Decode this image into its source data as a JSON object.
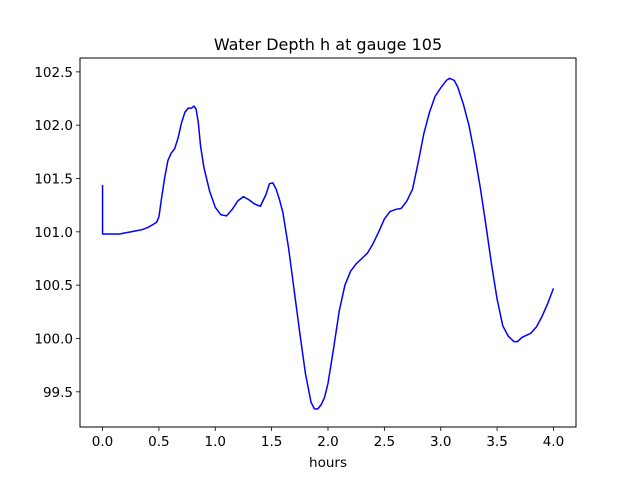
{
  "chart_data": {
    "type": "line",
    "title": "Water Depth h at gauge 105",
    "xlabel": "hours",
    "ylabel": "",
    "xlim": [
      -0.2,
      4.2
    ],
    "ylim": [
      99.17,
      102.63
    ],
    "x_ticks": [
      0.0,
      0.5,
      1.0,
      1.5,
      2.0,
      2.5,
      3.0,
      3.5,
      4.0
    ],
    "x_tick_labels": [
      "0.0",
      "0.5",
      "1.0",
      "1.5",
      "2.0",
      "2.5",
      "3.0",
      "3.5",
      "4.0"
    ],
    "y_ticks": [
      99.5,
      100.0,
      100.5,
      101.0,
      101.5,
      102.0,
      102.5
    ],
    "y_tick_labels": [
      "99.5",
      "100.0",
      "100.5",
      "101.0",
      "101.5",
      "102.0",
      "102.5"
    ],
    "grid": false,
    "legend": "none",
    "line_color": "#0000ff",
    "series": [
      {
        "x": [
          0.0,
          0.0,
          0.01,
          0.05,
          0.1,
          0.15,
          0.2,
          0.25,
          0.3,
          0.35,
          0.4,
          0.45,
          0.48,
          0.5,
          0.52,
          0.55,
          0.58,
          0.61,
          0.64,
          0.67,
          0.7,
          0.73,
          0.76,
          0.79,
          0.81,
          0.83,
          0.85,
          0.87,
          0.9,
          0.95,
          1.0,
          1.05,
          1.1,
          1.15,
          1.2,
          1.25,
          1.3,
          1.35,
          1.4,
          1.45,
          1.48,
          1.51,
          1.54,
          1.57,
          1.6,
          1.65,
          1.7,
          1.75,
          1.8,
          1.85,
          1.88,
          1.91,
          1.94,
          1.97,
          2.0,
          2.05,
          2.1,
          2.15,
          2.2,
          2.25,
          2.3,
          2.35,
          2.4,
          2.45,
          2.5,
          2.55,
          2.6,
          2.65,
          2.7,
          2.75,
          2.8,
          2.85,
          2.9,
          2.95,
          3.0,
          3.05,
          3.08,
          3.12,
          3.15,
          3.2,
          3.25,
          3.3,
          3.35,
          3.4,
          3.45,
          3.5,
          3.55,
          3.6,
          3.65,
          3.68,
          3.72,
          3.76,
          3.8,
          3.85,
          3.9,
          3.95,
          4.0
        ],
        "values": [
          101.44,
          100.98,
          100.98,
          100.98,
          100.98,
          100.98,
          100.99,
          101.0,
          101.01,
          101.02,
          101.04,
          101.07,
          101.09,
          101.14,
          101.29,
          101.5,
          101.67,
          101.74,
          101.78,
          101.88,
          102.02,
          102.12,
          102.16,
          102.16,
          102.18,
          102.15,
          102.02,
          101.8,
          101.6,
          101.38,
          101.23,
          101.16,
          101.15,
          101.21,
          101.29,
          101.33,
          101.3,
          101.26,
          101.24,
          101.35,
          101.45,
          101.46,
          101.4,
          101.3,
          101.18,
          100.85,
          100.45,
          100.05,
          99.67,
          99.4,
          99.34,
          99.34,
          99.38,
          99.45,
          99.58,
          99.91,
          100.26,
          100.5,
          100.63,
          100.7,
          100.75,
          100.8,
          100.89,
          101.0,
          101.12,
          101.19,
          101.21,
          101.22,
          101.29,
          101.4,
          101.65,
          101.92,
          102.12,
          102.27,
          102.35,
          102.42,
          102.44,
          102.42,
          102.36,
          102.2,
          102.0,
          101.73,
          101.42,
          101.07,
          100.7,
          100.37,
          100.12,
          100.02,
          99.97,
          99.97,
          100.01,
          100.03,
          100.05,
          100.11,
          100.21,
          100.33,
          100.47
        ]
      }
    ]
  }
}
